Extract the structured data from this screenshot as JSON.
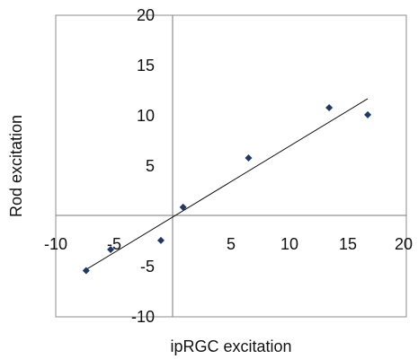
{
  "chart_data": {
    "type": "scatter",
    "title": "",
    "xlabel": "ipRGC excitation",
    "ylabel": "Rod excitation",
    "xlim": [
      -10,
      20
    ],
    "ylim": [
      -10,
      20
    ],
    "xticks": [
      "-10",
      "-5",
      "5",
      "10",
      "15",
      "20"
    ],
    "yticks": [
      "20",
      "15",
      "10",
      "5",
      "-5",
      "-10"
    ],
    "grid": false,
    "legend": "none",
    "series": [
      {
        "marker_color": "#1f3864",
        "points": [
          {
            "x": -7.4,
            "y": -5.4
          },
          {
            "x": -5.3,
            "y": -3.3
          },
          {
            "x": -1.0,
            "y": -2.4
          },
          {
            "x": 0.9,
            "y": 0.9
          },
          {
            "x": 6.5,
            "y": 5.8
          },
          {
            "x": 13.4,
            "y": 10.8
          },
          {
            "x": 16.7,
            "y": 10.1
          }
        ]
      }
    ],
    "trendline": {
      "x": [
        -7.4,
        16.7
      ],
      "y": [
        -5.3,
        11.7
      ]
    }
  }
}
